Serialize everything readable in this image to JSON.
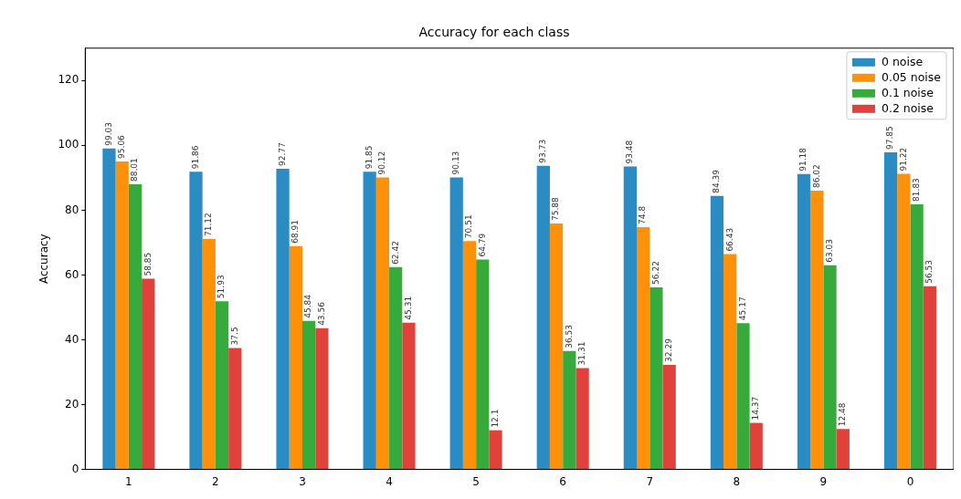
{
  "chart_data": {
    "type": "bar",
    "title": "Accuracy for each class",
    "ylabel": "Accuracy",
    "categories": [
      "1",
      "2",
      "3",
      "4",
      "5",
      "6",
      "7",
      "8",
      "9",
      "0"
    ],
    "series": [
      {
        "name": "0 noise",
        "color": "#2b8cc4",
        "values": [
          99.03,
          91.86,
          92.77,
          91.85,
          90.13,
          93.73,
          93.48,
          84.39,
          91.18,
          97.85
        ]
      },
      {
        "name": "0.05 noise",
        "color": "#ff910a",
        "values": [
          95.06,
          71.12,
          68.91,
          90.12,
          70.51,
          75.88,
          74.8,
          66.43,
          86.02,
          91.22
        ]
      },
      {
        "name": "0.1 noise",
        "color": "#36ab3b",
        "values": [
          88.01,
          51.93,
          45.84,
          62.42,
          64.79,
          36.53,
          56.22,
          45.17,
          63.03,
          81.83
        ]
      },
      {
        "name": "0.2 noise",
        "color": "#e0413a",
        "values": [
          58.85,
          37.5,
          43.56,
          45.31,
          12.1,
          31.31,
          32.29,
          14.37,
          12.48,
          56.53
        ]
      }
    ],
    "ylim": [
      0,
      130
    ],
    "yticks": [
      0,
      20,
      40,
      60,
      80,
      100,
      120
    ],
    "grid": false,
    "legend": "top right",
    "data_labels": true
  }
}
